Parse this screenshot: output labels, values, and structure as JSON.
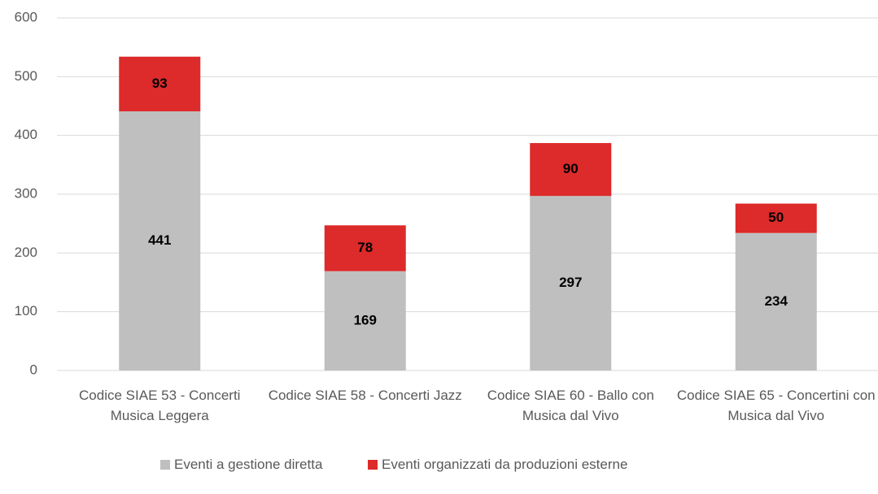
{
  "chart_data": {
    "type": "stacked_bar",
    "categories": [
      "Codice SIAE 53 - Concerti Musica Leggera",
      "Codice SIAE 58 - Concerti Jazz",
      "Codice SIAE 60 - Ballo con Musica dal Vivo",
      "Codice SIAE 65 - Concertini con Musica dal Vivo"
    ],
    "series": [
      {
        "name": "Eventi a gestione diretta",
        "color": "#bfbfbf",
        "values": [
          441,
          169,
          297,
          234
        ]
      },
      {
        "name": "Eventi organizzati da produzioni esterne",
        "color": "#dd2a2a",
        "values": [
          93,
          78,
          90,
          50
        ]
      }
    ],
    "ylim": [
      0,
      600
    ],
    "yticks": [
      0,
      100,
      200,
      300,
      400,
      500,
      600
    ],
    "grid": true,
    "legend": "bottom"
  }
}
